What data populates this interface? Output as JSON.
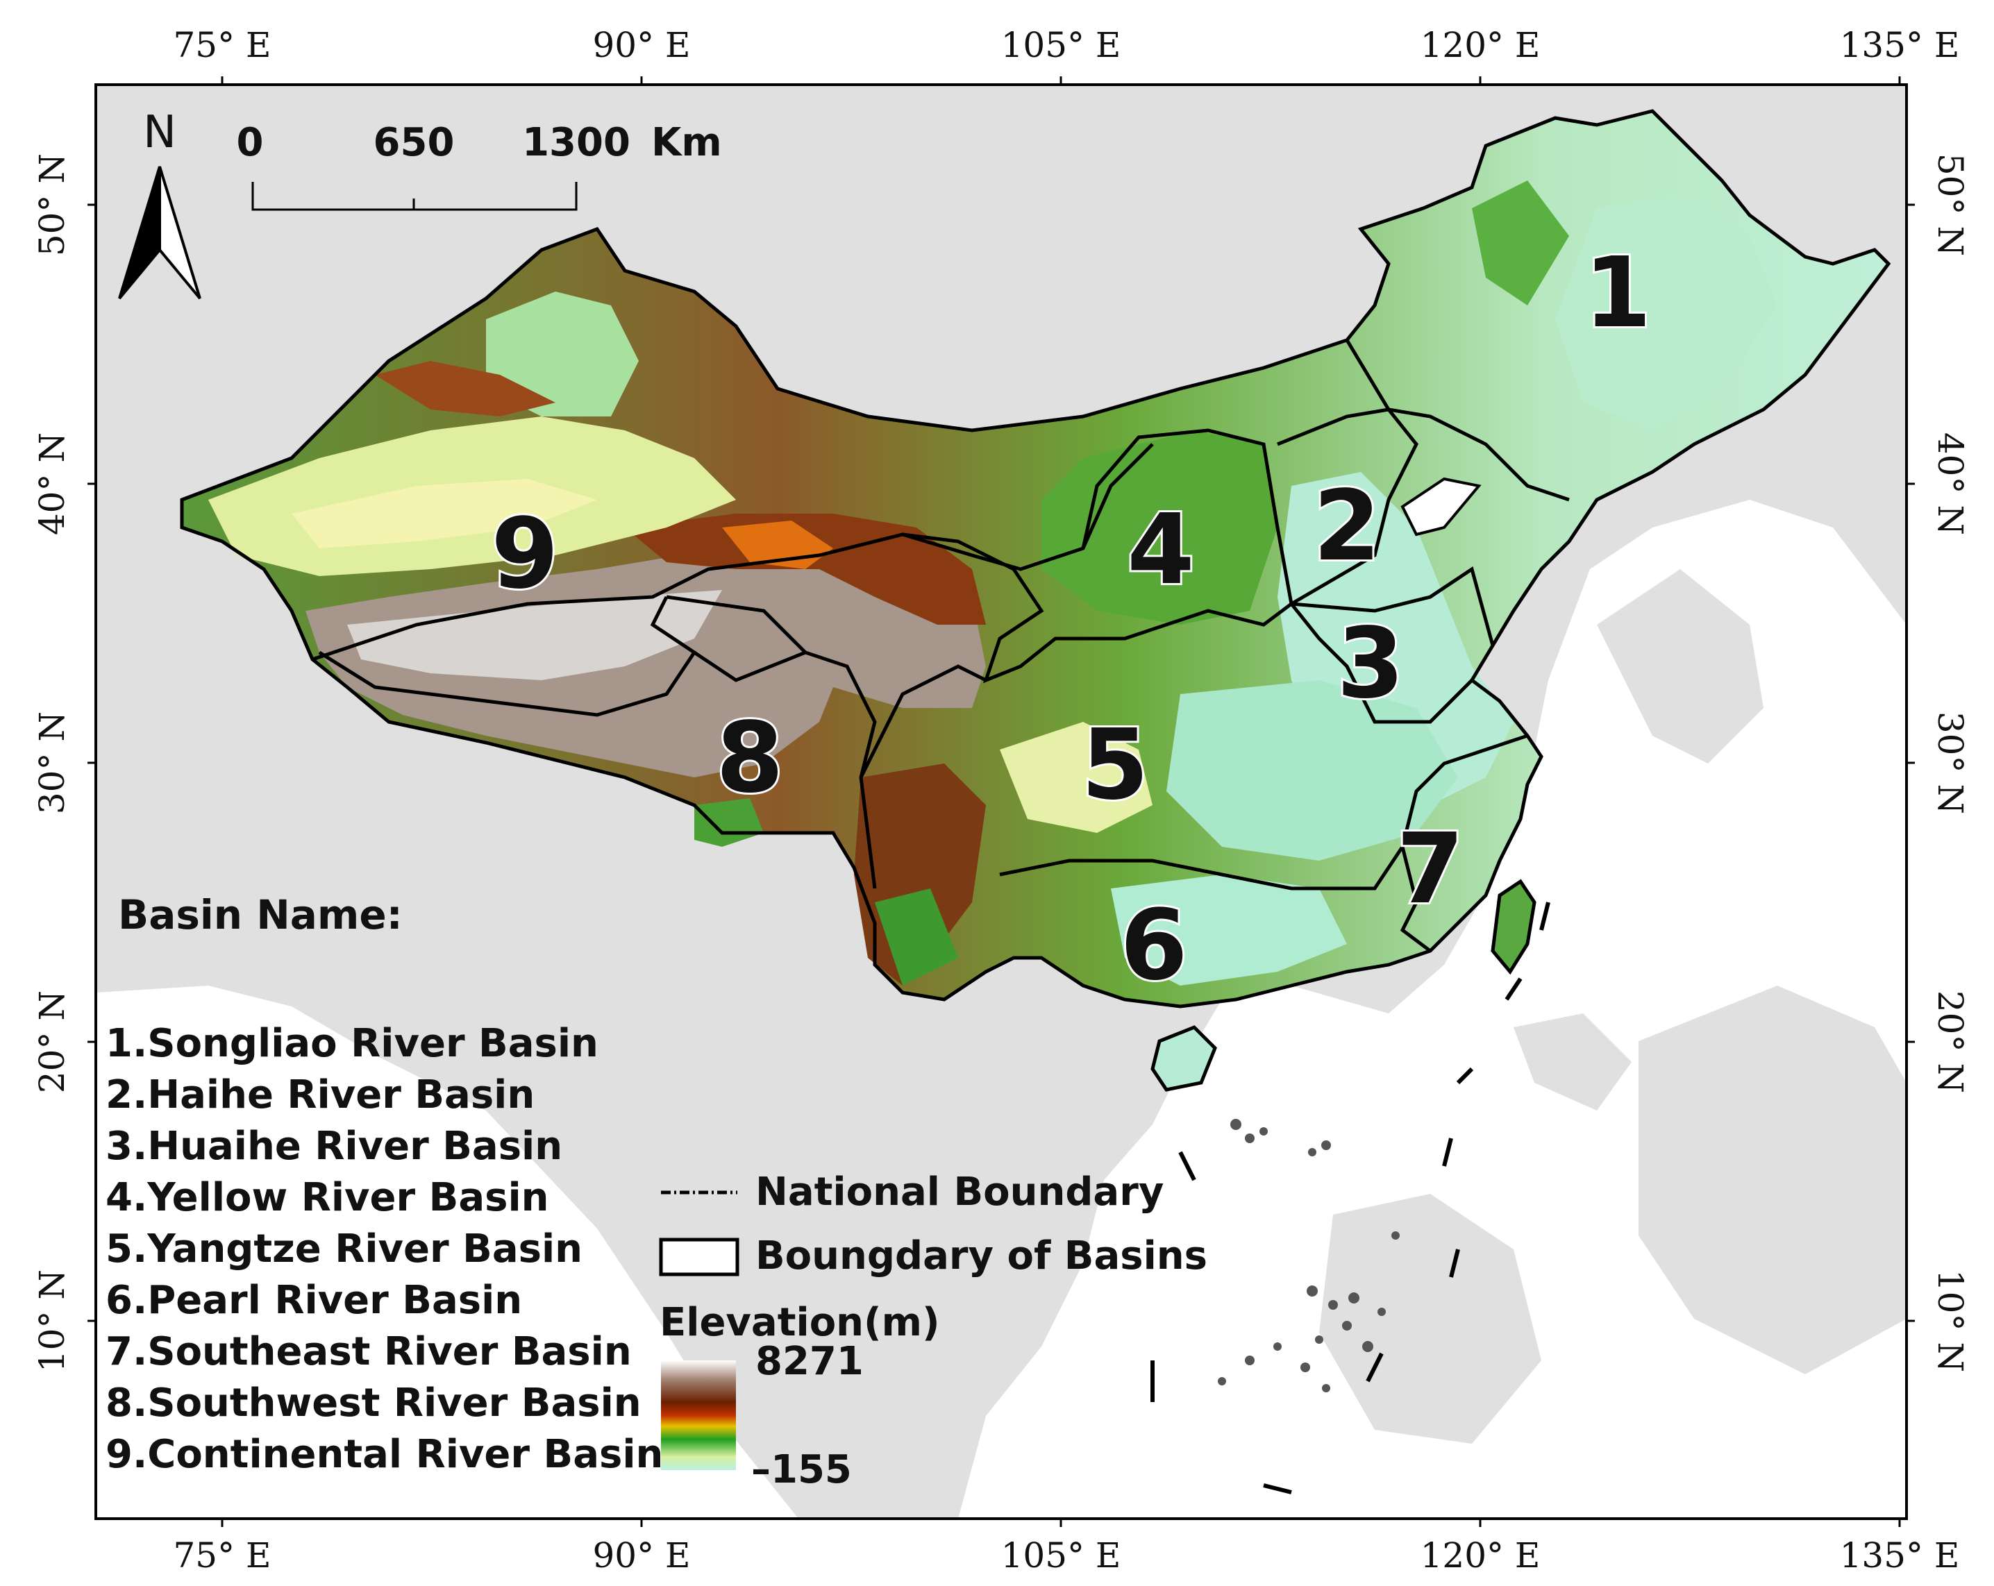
{
  "map": {
    "longitude_labels": [
      "75° E",
      "90° E",
      "105° E",
      "120° E",
      "135° E"
    ],
    "latitude_labels": [
      "50° N",
      "40° N",
      "30° N",
      "20° N",
      "10° N"
    ]
  },
  "north_arrow": {
    "label": "N"
  },
  "scale_bar": {
    "labels": [
      "0",
      "650",
      "1300"
    ],
    "unit": "Km"
  },
  "basin_markers": [
    "1",
    "2",
    "3",
    "4",
    "5",
    "6",
    "7",
    "8",
    "9"
  ],
  "basin_legend": {
    "title": "Basin Name:",
    "items": [
      "1.Songliao River Basin",
      "2.Haihe River Basin",
      "3.Huaihe River Basin",
      "4.Yellow River Basin",
      "5.Yangtze River Basin",
      "6.Pearl River Basin",
      "7.Southeast River Basin",
      "8.Southwest River Basin",
      "9.Continental River Basin"
    ]
  },
  "symbol_legend": {
    "national_boundary": "National Boundary",
    "basin_boundary": "Boungdary of Basins"
  },
  "elevation_legend": {
    "title": "Elevation(m)",
    "max": "8271",
    "min": "–155"
  },
  "colors": {
    "land_background": "#e0e0e0",
    "sea": "#ffffff",
    "elevation_ramp": [
      "#b8f0e0",
      "#d8f0a0",
      "#20a020",
      "#e8c000",
      "#c03000",
      "#6a2000",
      "#a08070",
      "#ffffff"
    ]
  }
}
